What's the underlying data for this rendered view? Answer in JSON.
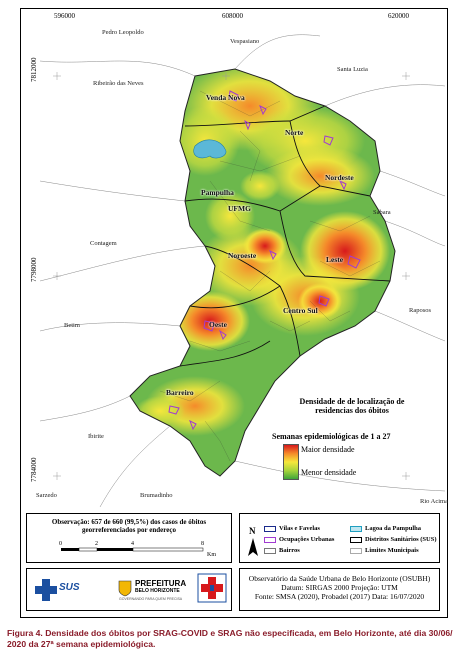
{
  "map": {
    "ticks_x": [
      "596000",
      "608000",
      "620000"
    ],
    "ticks_y": [
      "7812000",
      "7798000",
      "7784000"
    ],
    "neighbors": [
      "Pedro Leopoldo",
      "Vespasiano",
      "Ribeirão das Neves",
      "Santa Luzia",
      "Contagem",
      "Sabara",
      "Betim",
      "Raposos",
      "Ibirite",
      "Sarzedo",
      "Brumadinho",
      "Rio Acima"
    ],
    "districts": [
      "Venda Nova",
      "Norte",
      "Nordeste",
      "Pampulha",
      "UFMG",
      "Noroeste",
      "Leste",
      "Centro Sul",
      "Oeste",
      "Barreiro"
    ]
  },
  "legend": {
    "title": "Densidade de de localização de residencias dos óbitos",
    "weeks": "Semanas epidemiológicas de 1 a 27",
    "high": "Maior densidade",
    "low": "Menor densidade",
    "colors": {
      "high": "#d7191c",
      "mid": "#f6e73c",
      "low": "#3fa53a"
    }
  },
  "observation": "Observação: 657 de 660 (99,5%) dos casos de óbitos georreferenciados por endereço",
  "scale": {
    "ticks": [
      "0",
      "2",
      "4",
      "8"
    ],
    "unit": "Km"
  },
  "north_label": "N",
  "layers": [
    "Vilas e Favelas",
    "Ocupações Urbanas",
    "Bairros",
    "Lagoa da Pampulha",
    "Distritos Sanitários (SUS)",
    "Limites Municipais"
  ],
  "logos": {
    "sus": "SUS",
    "prefeitura_line1": "PREFEITURA",
    "prefeitura_line2": "BELO HORIZONTE",
    "prefeitura_line3": "GOVERNANDO PARA QUEM PRECISA"
  },
  "credits": {
    "line1": "Observatório da Saúde Urbana de Belo Horizonte (OSUBH)",
    "line2": "Datum: SIRGAS 2000 Projeção: UTM",
    "line3": "Fonte: SMSA (2020), Probadel (2017) Data: 16/07/2020"
  },
  "caption": "Figura 4. Densidade dos óbitos por SRAG-COVID e SRAG não especificada, em Belo Horizonte, até dia 30/06/ 2020 da 27ª semana epidemiológica."
}
